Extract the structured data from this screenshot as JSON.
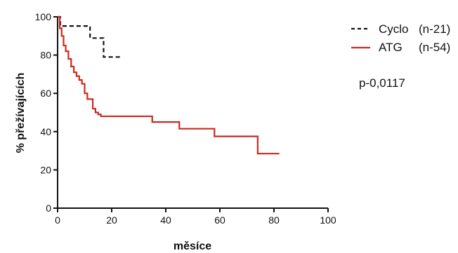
{
  "chart_data": {
    "type": "line",
    "step": "post",
    "title": "",
    "xlabel": "měsíce",
    "ylabel": "% přežívajících",
    "xlim": [
      0,
      100
    ],
    "ylim": [
      0,
      100
    ],
    "x_ticks": [
      0,
      20,
      40,
      60,
      80,
      100
    ],
    "y_ticks": [
      0,
      20,
      40,
      60,
      80,
      100
    ],
    "grid": false,
    "legend_position": "top-right",
    "legend": [
      {
        "name": "Cyclo",
        "count": "(n-21)"
      },
      {
        "name": "ATG",
        "count": "(n-54)"
      }
    ],
    "annotation": "p-0,0117",
    "colors": {
      "cyclo": "#111111",
      "atg": "#cc2a1e",
      "axis": "#111111"
    },
    "series": [
      {
        "name": "Cyclo",
        "line_style": "dashed",
        "color": "#111111",
        "x": [
          0,
          1,
          12,
          17,
          24
        ],
        "y": [
          100,
          95.2,
          88.9,
          79,
          79
        ]
      },
      {
        "name": "ATG",
        "line_style": "solid",
        "color": "#cc2a1e",
        "x": [
          0,
          0.8,
          1.5,
          2.2,
          3,
          4,
          5,
          6,
          7,
          8,
          9,
          10,
          11,
          13,
          14,
          15,
          16,
          35,
          45,
          58,
          74,
          82
        ],
        "y": [
          100,
          94,
          90,
          85,
          82,
          78,
          74,
          71,
          69,
          67,
          65,
          60,
          57,
          52,
          50,
          49,
          48,
          45,
          41.5,
          37.5,
          28.5,
          28.5
        ]
      }
    ]
  }
}
